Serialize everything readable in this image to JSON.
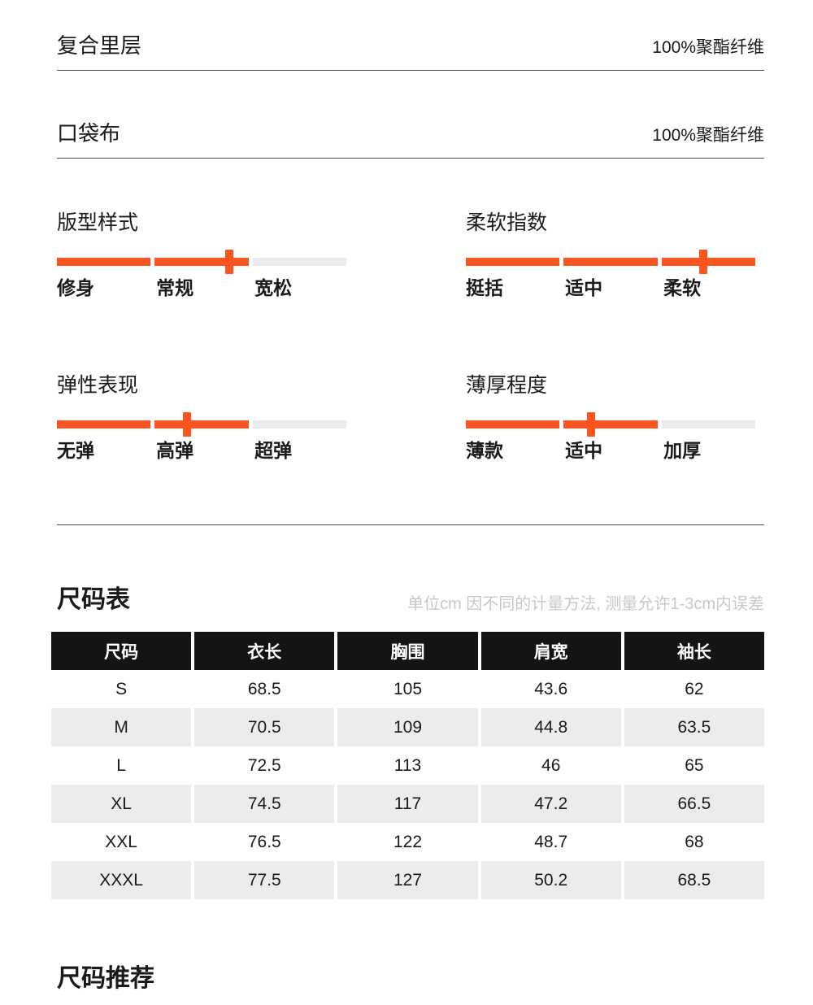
{
  "colors": {
    "accent_orange": "#fb541e",
    "track_gray": "#ebebeb",
    "row_stripe": "#ececec",
    "table_header_bg": "#141414"
  },
  "materials": [
    {
      "name": "复合里层",
      "value": "100%聚酯纤维"
    },
    {
      "name": "口袋布",
      "value": "100%聚酯纤维"
    }
  ],
  "sliders": [
    {
      "title": "版型样式",
      "labels": [
        "修身",
        "常规",
        "宽松"
      ],
      "segments": [
        "filled",
        "filled",
        "empty"
      ],
      "marker_percent": 59.6
    },
    {
      "title": "柔软指数",
      "labels": [
        "挺括",
        "适中",
        "柔软"
      ],
      "segments": [
        "filled",
        "filled",
        "filled"
      ],
      "marker_percent": 82
    },
    {
      "title": "弹性表现",
      "labels": [
        "无弹",
        "高弹",
        "超弹"
      ],
      "segments": [
        "filled",
        "filled",
        "empty"
      ],
      "marker_percent": 45
    },
    {
      "title": "薄厚程度",
      "labels": [
        "薄款",
        "适中",
        "加厚"
      ],
      "segments": [
        "filled",
        "filled",
        "empty"
      ],
      "marker_percent": 43.3
    }
  ],
  "size_table": {
    "title": "尺码表",
    "note": "单位cm 因不同的计量方法, 测量允许1-3cm内误差",
    "headers": [
      "尺码",
      "衣长",
      "胸围",
      "肩宽",
      "袖长"
    ],
    "rows": [
      [
        "S",
        "68.5",
        "105",
        "43.6",
        "62"
      ],
      [
        "M",
        "70.5",
        "109",
        "44.8",
        "63.5"
      ],
      [
        "L",
        "72.5",
        "113",
        "46",
        "65"
      ],
      [
        "XL",
        "74.5",
        "117",
        "47.2",
        "66.5"
      ],
      [
        "XXL",
        "76.5",
        "122",
        "48.7",
        "68"
      ],
      [
        "XXXL",
        "77.5",
        "127",
        "50.2",
        "68.5"
      ]
    ]
  },
  "size_recommend": {
    "title": "尺码推荐"
  }
}
